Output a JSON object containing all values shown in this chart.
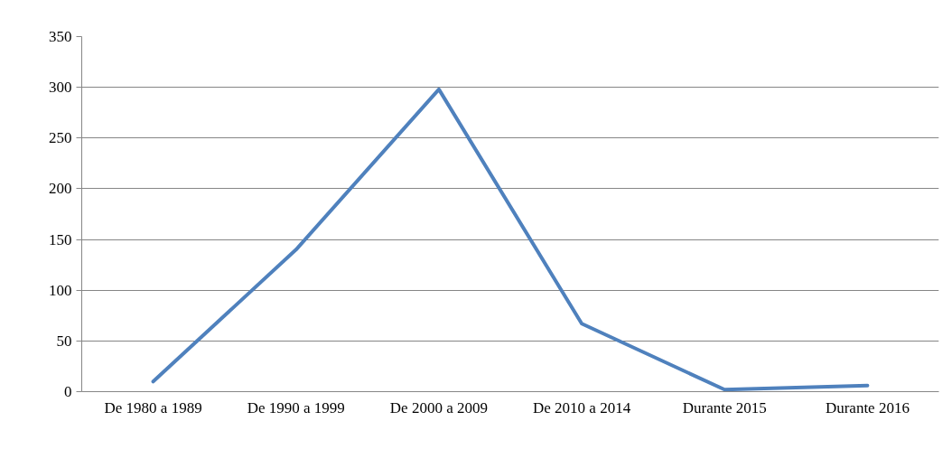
{
  "chart_data": {
    "type": "line",
    "categories": [
      "De 1980 a 1989",
      "De 1990 a 1999",
      "De 2000 a 2009",
      "De 2010 a 2014",
      "Durante 2015",
      "Durante 2016"
    ],
    "series": [
      {
        "color": "#4f81bd",
        "values": [
          10,
          140,
          298,
          67,
          2,
          6
        ]
      }
    ],
    "ylim": [
      0,
      350
    ],
    "yticks": [
      0,
      50,
      100,
      150,
      200,
      250,
      300,
      350
    ],
    "grid": "y",
    "marker": "none",
    "line_style": "solid"
  }
}
